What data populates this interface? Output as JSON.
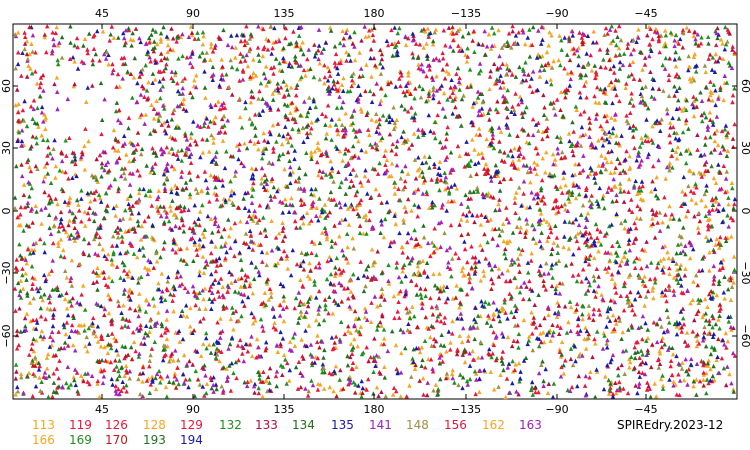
{
  "chart_data": {
    "type": "scatter",
    "title": "SPIREdry.2023-12",
    "x_ticks_top": [
      "45",
      "90",
      "135",
      "180",
      "−135",
      "−90",
      "−45"
    ],
    "x_ticks_bottom": [
      "45",
      "90",
      "135",
      "180",
      "−135",
      "−90",
      "−45"
    ],
    "y_ticks_left": [
      "60",
      "30",
      "0",
      "−30",
      "−60"
    ],
    "y_ticks_right": [
      "60",
      "30",
      "0",
      "−30",
      "−60"
    ],
    "lon_range": [
      0,
      360
    ],
    "lat_range": [
      -90,
      90
    ],
    "legend": [
      {
        "label": "113",
        "color": "#f5a623"
      },
      {
        "label": "119",
        "color": "#e8173b"
      },
      {
        "label": "126",
        "color": "#e8173b"
      },
      {
        "label": "128",
        "color": "#f5a623"
      },
      {
        "label": "129",
        "color": "#e8173b"
      },
      {
        "label": "132",
        "color": "#1f8f1f"
      },
      {
        "label": "133",
        "color": "#b01040"
      },
      {
        "label": "134",
        "color": "#1f6f1f"
      },
      {
        "label": "135",
        "color": "#1a1aa8"
      },
      {
        "label": "141",
        "color": "#a020c0"
      },
      {
        "label": "148",
        "color": "#a09040"
      },
      {
        "label": "156",
        "color": "#e8173b"
      },
      {
        "label": "162",
        "color": "#f5a623"
      },
      {
        "label": "163",
        "color": "#a020c0"
      },
      {
        "label": "166",
        "color": "#f5a623"
      },
      {
        "label": "169",
        "color": "#1f8f1f"
      },
      {
        "label": "170",
        "color": "#c01818"
      },
      {
        "label": "193",
        "color": "#1f6f1f"
      },
      {
        "label": "194",
        "color": "#1a1aa8"
      }
    ]
  }
}
